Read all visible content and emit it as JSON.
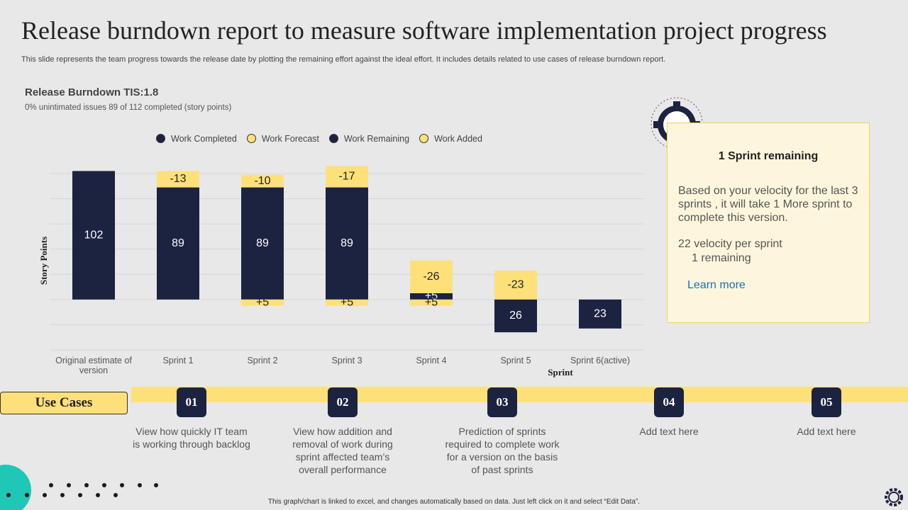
{
  "header": {
    "title": "Release burndown report to measure software implementation project progress",
    "subtitle": "This slide represents the team progress towards the release date by plotting the remaining effort against the ideal effort. It includes details related to use cases of release burndown report."
  },
  "chart_data": {
    "type": "bar",
    "title": "Release Burndown TIS:1.8",
    "subtitle": "0% unintimated issues  89 of 112 completed (story points)",
    "y_label": "Story Points",
    "x_label": "Sprint",
    "categories": [
      "Original estimate of version",
      "Sprint 1",
      "Sprint 2",
      "Sprint 3",
      "Sprint 4",
      "Sprint 5",
      "Sprint 6(active)"
    ],
    "series": [
      {
        "name": "Work Completed",
        "color": "#1c2340",
        "stack": "above",
        "values": [
          102,
          89,
          89,
          89,
          5,
          null,
          null
        ],
        "value_labels": [
          null,
          null,
          null,
          null,
          "+5",
          null,
          null
        ]
      },
      {
        "name": "Work Forecast",
        "color": "#fde07a",
        "stack": "above",
        "values": [
          null,
          -13,
          -10,
          -17,
          -26,
          -23,
          null
        ]
      },
      {
        "name": "Work Remaining",
        "color": "#1c2340",
        "stack": "below",
        "values": [
          null,
          null,
          null,
          null,
          null,
          26,
          23
        ]
      },
      {
        "name": "Work Added",
        "color": "#fde07a",
        "stack": "below",
        "values": [
          null,
          null,
          5,
          5,
          5,
          null,
          null
        ],
        "value_labels": [
          null,
          null,
          "+5",
          "+5",
          "+5",
          null,
          null
        ]
      }
    ],
    "ylim": [
      -40,
      100
    ],
    "yticks": [
      -40,
      -20,
      0,
      20,
      40,
      60,
      80,
      100
    ],
    "grid": true
  },
  "panel": {
    "title": "1 Sprint remaining",
    "body": "Based on your velocity for the last 3 sprints , it will take 1 More sprint to complete this version.",
    "velocity": "22 velocity  per sprint",
    "remaining": "1 remaining",
    "link": "Learn more"
  },
  "use_cases": {
    "label": "Use Cases",
    "items": [
      {
        "number": "01",
        "text": "View how quickly IT team is working through backlog"
      },
      {
        "number": "02",
        "text": "View how addition and removal of work during sprint affected team’s overall performance"
      },
      {
        "number": "03",
        "text": "Prediction of sprints required to complete work for a version on the basis of past sprints"
      },
      {
        "number": "04",
        "text": "Add text here"
      },
      {
        "number": "05",
        "text": "Add text here"
      }
    ]
  },
  "footer": "This graph/chart is linked to excel, and changes automatically based on data. Just left click on it and select “Edit Data”."
}
